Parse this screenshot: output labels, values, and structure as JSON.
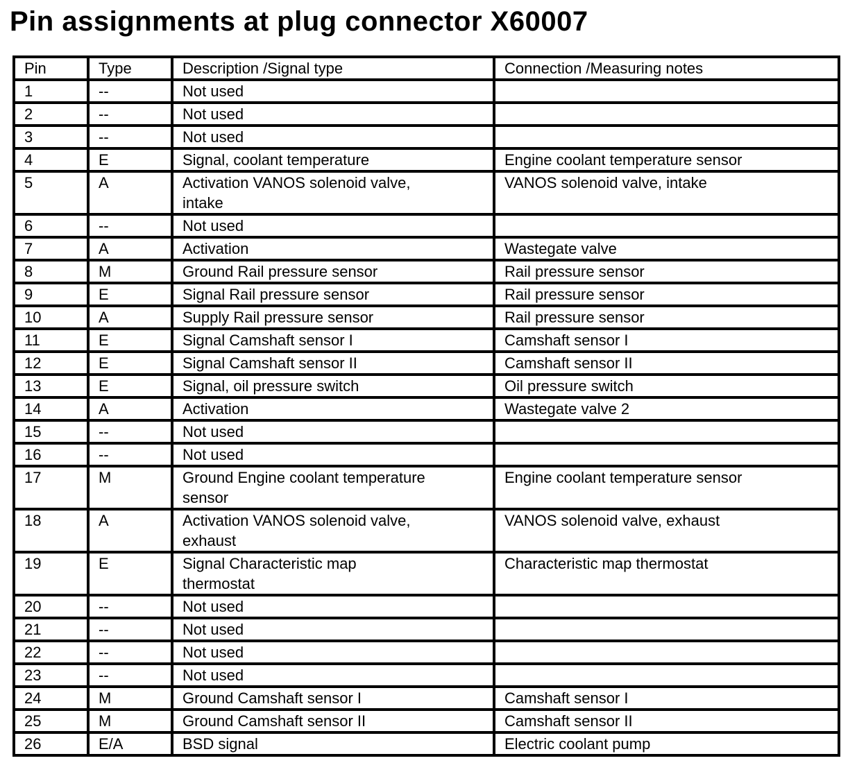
{
  "page": {
    "title": "Pin assignments at plug connector X60007"
  },
  "colors": {
    "background": "#ffffff",
    "text": "#000000",
    "border": "#000000"
  },
  "table": {
    "columns": [
      "Pin",
      "Type",
      "Description /Signal type",
      "Connection /Measuring notes"
    ],
    "rows": [
      {
        "pin": "1",
        "type": "--",
        "description": "Not used",
        "connection": ""
      },
      {
        "pin": "2",
        "type": "--",
        "description": "Not used",
        "connection": ""
      },
      {
        "pin": "3",
        "type": "--",
        "description": "Not used",
        "connection": ""
      },
      {
        "pin": "4",
        "type": "E",
        "description": "Signal, coolant temperature",
        "connection": "Engine coolant temperature sensor"
      },
      {
        "pin": "5",
        "type": "A",
        "description": "Activation VANOS solenoid valve,\nintake",
        "connection": "VANOS solenoid valve, intake"
      },
      {
        "pin": "6",
        "type": "--",
        "description": "Not used",
        "connection": ""
      },
      {
        "pin": "7",
        "type": "A",
        "description": "Activation",
        "connection": "Wastegate valve"
      },
      {
        "pin": "8",
        "type": "M",
        "description": "Ground Rail pressure sensor",
        "connection": "Rail pressure sensor"
      },
      {
        "pin": "9",
        "type": "E",
        "description": "Signal Rail pressure sensor",
        "connection": "Rail pressure sensor"
      },
      {
        "pin": "10",
        "type": "A",
        "description": "Supply Rail pressure sensor",
        "connection": "Rail pressure sensor"
      },
      {
        "pin": "11",
        "type": "E",
        "description": "Signal Camshaft sensor I",
        "connection": "Camshaft sensor I"
      },
      {
        "pin": "12",
        "type": "E",
        "description": "Signal Camshaft sensor II",
        "connection": "Camshaft sensor II"
      },
      {
        "pin": "13",
        "type": "E",
        "description": "Signal, oil pressure switch",
        "connection": "Oil pressure switch"
      },
      {
        "pin": "14",
        "type": "A",
        "description": "Activation",
        "connection": "Wastegate valve 2"
      },
      {
        "pin": "15",
        "type": "--",
        "description": "Not used",
        "connection": ""
      },
      {
        "pin": "16",
        "type": "--",
        "description": "Not used",
        "connection": ""
      },
      {
        "pin": "17",
        "type": "M",
        "description": "Ground Engine coolant temperature\nsensor",
        "connection": "Engine coolant temperature sensor"
      },
      {
        "pin": "18",
        "type": "A",
        "description": "Activation VANOS solenoid valve,\nexhaust",
        "connection": "VANOS solenoid valve, exhaust"
      },
      {
        "pin": "19",
        "type": "E",
        "description": "Signal Characteristic map\nthermostat",
        "connection": "Characteristic map thermostat"
      },
      {
        "pin": "20",
        "type": "--",
        "description": "Not used",
        "connection": ""
      },
      {
        "pin": "21",
        "type": "--",
        "description": "Not used",
        "connection": ""
      },
      {
        "pin": "22",
        "type": "--",
        "description": "Not used",
        "connection": ""
      },
      {
        "pin": "23",
        "type": "--",
        "description": "Not used",
        "connection": ""
      },
      {
        "pin": "24",
        "type": "M",
        "description": "Ground Camshaft sensor I",
        "connection": "Camshaft sensor I"
      },
      {
        "pin": "25",
        "type": "M",
        "description": "Ground Camshaft sensor II",
        "connection": "Camshaft sensor II"
      },
      {
        "pin": "26",
        "type": "E/A",
        "description": "BSD signal",
        "connection": "Electric coolant pump"
      }
    ]
  }
}
